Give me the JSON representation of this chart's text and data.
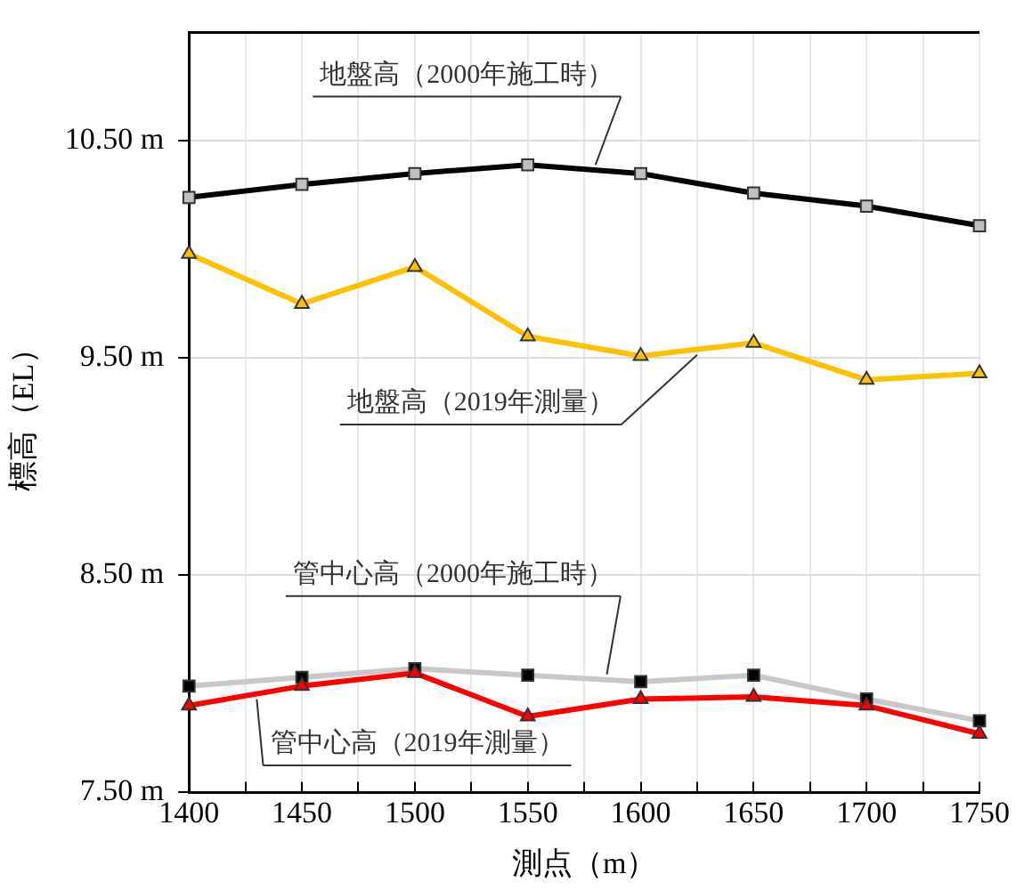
{
  "chart_data": {
    "type": "line",
    "xlabel": "測点（m）",
    "ylabel": "標高（EL）",
    "x": [
      1400,
      1450,
      1500,
      1550,
      1600,
      1650,
      1700,
      1750
    ],
    "series": [
      {
        "name": "地盤高（2000年施工時）",
        "color": "#000000",
        "marker": "square",
        "values": [
          10.24,
          10.3,
          10.35,
          10.39,
          10.35,
          10.26,
          10.2,
          10.11
        ]
      },
      {
        "name": "地盤高（2019年測量）",
        "color": "#ffc000",
        "marker": "triangle",
        "values": [
          9.98,
          9.75,
          9.92,
          9.6,
          9.51,
          9.57,
          9.4,
          9.43
        ]
      },
      {
        "name": "管中心高（2000年施工時）",
        "color": "#c8c8c8",
        "marker": "square",
        "values": [
          7.99,
          8.03,
          8.07,
          8.04,
          8.01,
          8.04,
          7.93,
          7.83
        ]
      },
      {
        "name": "管中心高（2019年測量）",
        "color": "#ff0000",
        "marker": "triangle",
        "values": [
          7.9,
          7.99,
          8.05,
          7.85,
          7.93,
          7.94,
          7.9,
          7.77
        ]
      }
    ],
    "xlim": [
      1400,
      1750
    ],
    "xticks": [
      1400,
      {
        "value": 1425,
        "label": null
      },
      1450,
      {
        "value": 1475,
        "label": null
      },
      1500,
      {
        "value": 1525,
        "label": null
      },
      1550,
      {
        "value": 1575,
        "label": null
      },
      1600,
      {
        "value": 1625,
        "label": null
      },
      1650,
      {
        "value": 1675,
        "label": null
      },
      1700,
      {
        "value": 1725,
        "label": null
      },
      1750
    ],
    "ylim": [
      7.5,
      11.0
    ],
    "yticks": [
      {
        "value": 7.5,
        "label": "7.50 m"
      },
      {
        "value": 8.5,
        "label": "8.50 m"
      },
      {
        "value": 9.5,
        "label": "9.50 m"
      },
      {
        "value": 10.5,
        "label": "10.50 m"
      }
    ],
    "grid": true,
    "legend": false
  }
}
